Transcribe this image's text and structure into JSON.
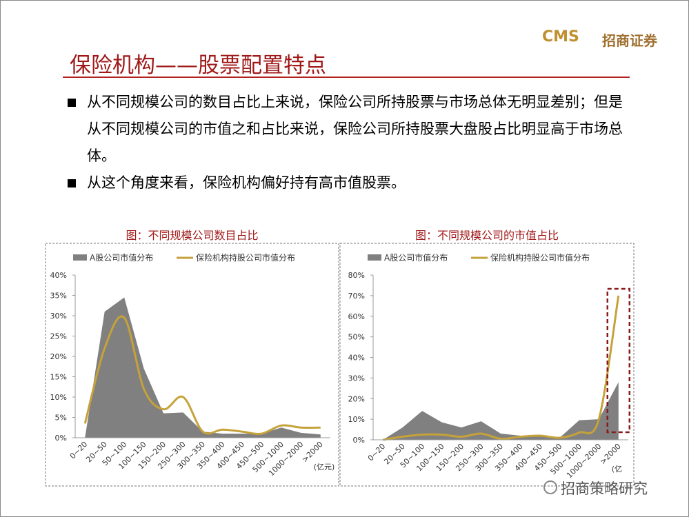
{
  "header": {
    "logo": "CMS",
    "company": "招商证券",
    "title": "保险机构——股票配置特点"
  },
  "bullets": [
    "从不同规模公司的数目占比上来说，保险公司所持股票与市场总体无明显差别；但是从不同规模公司的市值之和占比来说，保险公司所持股票大盘股占比明显高于市场总体。",
    "从这个角度来看，保险机构偏好持有高市值股票。"
  ],
  "chart_data": [
    {
      "type": "area-line",
      "title": "图：不同规模公司数目占比",
      "x_unit": "(亿元)",
      "categories": [
        "0~20",
        "20~50",
        "50~100",
        "100~150",
        "150~200",
        "250~300",
        "300~350",
        "350~400",
        "400~450",
        "450~500",
        "500~1000",
        "1000~2000",
        ">2000"
      ],
      "series": [
        {
          "name": "A股公司市值分布",
          "color": "#808080",
          "values": [
            0,
            31,
            34.5,
            17,
            6,
            6.2,
            1.5,
            1,
            1,
            1,
            2.5,
            1.2,
            0.8
          ]
        },
        {
          "name": "保险机构持股公司市值分布",
          "color": "#c5a23a",
          "values": [
            3.5,
            22,
            29.5,
            12,
            7,
            10,
            1.5,
            2,
            1.5,
            1,
            3,
            2.5,
            2.5
          ]
        }
      ],
      "ylim": [
        0,
        40
      ],
      "yticks": [
        {
          "value": 0,
          "label": "0%"
        },
        {
          "value": 5,
          "label": "5%"
        },
        {
          "value": 10,
          "label": "10%"
        },
        {
          "value": 15,
          "label": "15%"
        },
        {
          "value": 20,
          "label": "20%"
        },
        {
          "value": 25,
          "label": "25%"
        },
        {
          "value": 30,
          "label": "30%"
        },
        {
          "value": 35,
          "label": "35%"
        },
        {
          "value": 40,
          "label": "40%"
        }
      ]
    },
    {
      "type": "area-line",
      "title": "图：不同规模公司的市值占比",
      "x_unit": "(亿",
      "categories": [
        "0~20",
        "20~50",
        "50~100",
        "100~150",
        "150~200",
        "250~300",
        "300~350",
        "350~400",
        "400~450",
        "450~500",
        "500~1000",
        "1000~2000",
        ">2000"
      ],
      "series": [
        {
          "name": "A股公司市值分布",
          "color": "#808080",
          "values": [
            0,
            6,
            14,
            8.5,
            6,
            9,
            3,
            2,
            2,
            1,
            9.5,
            10,
            28
          ]
        },
        {
          "name": "保险机构持股公司市值分布",
          "color": "#c5a23a",
          "values": [
            0,
            1.5,
            2.5,
            2.5,
            1.5,
            3,
            0.5,
            1.5,
            2,
            1,
            3.5,
            10,
            70
          ]
        }
      ],
      "ylim": [
        0,
        80
      ],
      "yticks": [
        {
          "value": 0,
          "label": "0%"
        },
        {
          "value": 10,
          "label": "10%"
        },
        {
          "value": 20,
          "label": "20%"
        },
        {
          "value": 30,
          "label": "30%"
        },
        {
          "value": 40,
          "label": "40%"
        },
        {
          "value": 50,
          "label": "50%"
        },
        {
          "value": 60,
          "label": "60%"
        },
        {
          "value": 70,
          "label": "70%"
        },
        {
          "value": 80,
          "label": "80%"
        }
      ]
    }
  ],
  "watermark": "招商策略研究"
}
